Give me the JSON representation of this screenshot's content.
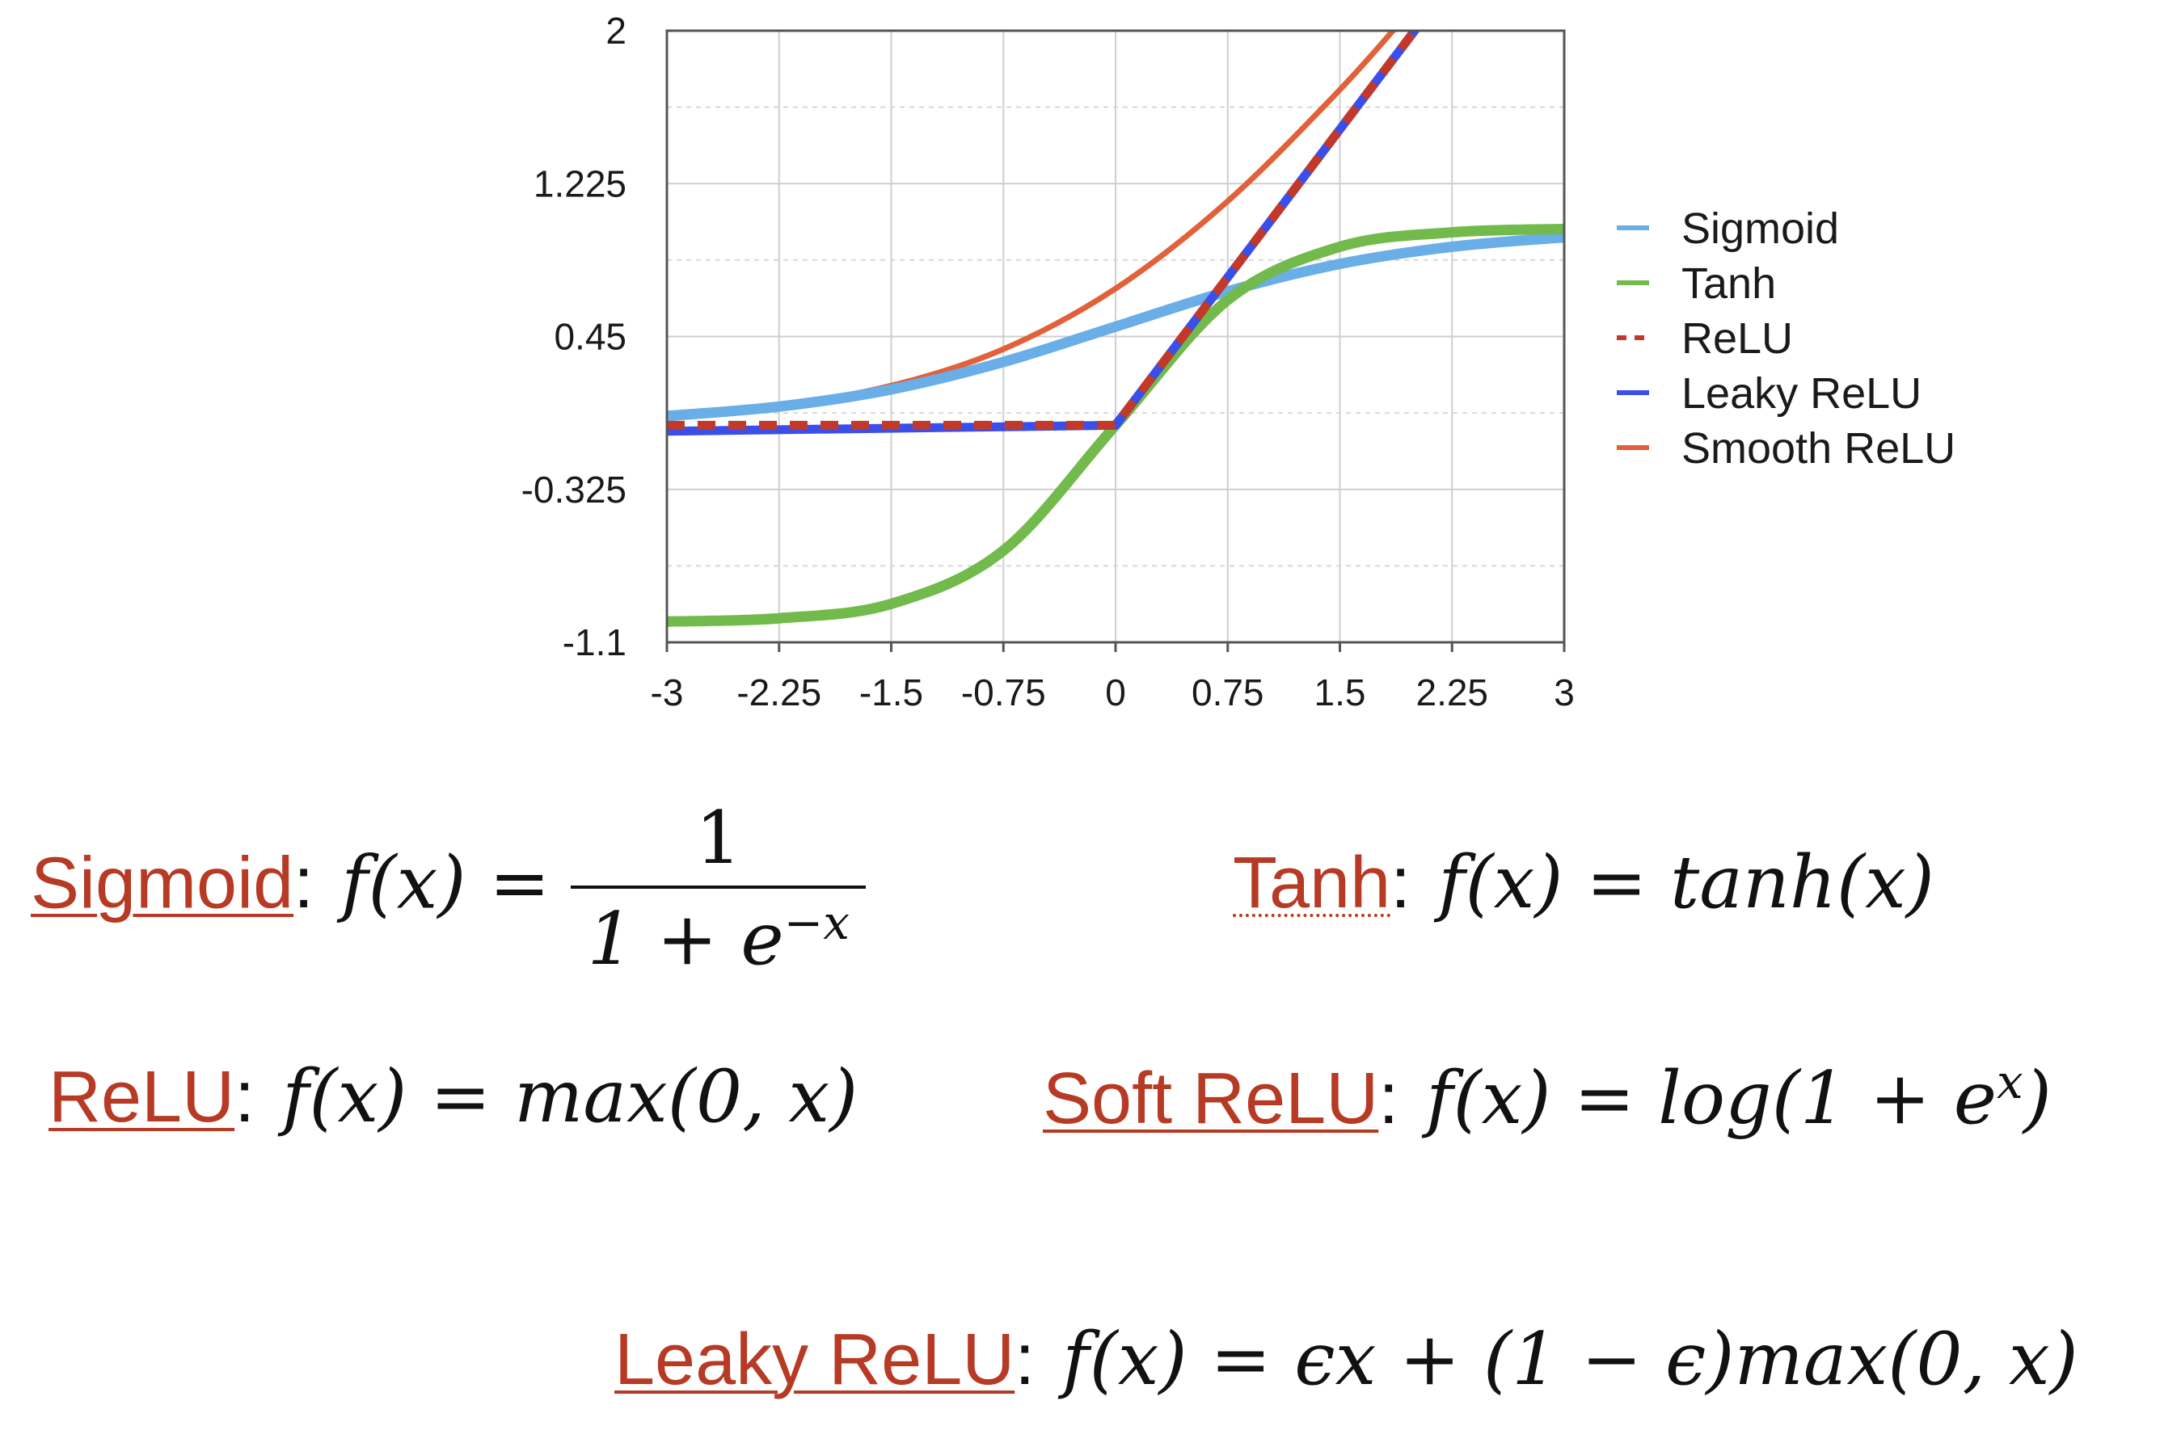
{
  "chart_data": {
    "type": "line",
    "xlim": [
      -3,
      3
    ],
    "ylim": [
      -1.1,
      2
    ],
    "x_ticks": [
      "-3",
      "-2.25",
      "-1.5",
      "-0.75",
      "0",
      "0.75",
      "1.5",
      "2.25",
      "3"
    ],
    "y_ticks": [
      "-1.1",
      "-0.325",
      "0.45",
      "1.225",
      "2"
    ],
    "grid": true,
    "legend_position": "right",
    "series": [
      {
        "name": "Sigmoid",
        "color": "#6aaee8",
        "style": "solid",
        "x": [
          -3,
          -2.25,
          -1.5,
          -0.75,
          0,
          0.75,
          1.5,
          2.25,
          3
        ],
        "y": [
          0.047,
          0.095,
          0.182,
          0.321,
          0.5,
          0.679,
          0.818,
          0.905,
          0.953
        ]
      },
      {
        "name": "Tanh",
        "color": "#72ba4b",
        "style": "solid",
        "x": [
          -3,
          -2.25,
          -1.5,
          -0.75,
          0,
          0.75,
          1.5,
          2.25,
          3
        ],
        "y": [
          -0.995,
          -0.978,
          -0.905,
          -0.635,
          0,
          0.635,
          0.905,
          0.978,
          0.995
        ]
      },
      {
        "name": "ReLU",
        "color": "#c0392b",
        "style": "dashed",
        "x": [
          -3,
          0,
          2.1
        ],
        "y": [
          0,
          0,
          2.1
        ]
      },
      {
        "name": "Leaky ReLU",
        "color": "#3b4ee8",
        "style": "solid",
        "x": [
          -3,
          0,
          2.1
        ],
        "y": [
          -0.03,
          0,
          2.1
        ]
      },
      {
        "name": "Smooth ReLU",
        "color": "#e0613a",
        "style": "solid",
        "x": [
          -3,
          -2.25,
          -1.5,
          -0.75,
          0,
          0.75,
          1.5,
          2.0
        ],
        "y": [
          0.049,
          0.1,
          0.201,
          0.386,
          0.693,
          1.136,
          1.701,
          2.127
        ]
      }
    ]
  },
  "formulas": {
    "sigmoid": {
      "name": "Sigmoid",
      "colon": ":",
      "lhs": "f(x) =",
      "numerator": "1",
      "denominator": "1 + e",
      "exponent": "−x"
    },
    "tanh": {
      "name": "Tanh",
      "colon": ":",
      "expr": "f(x) = tanh(x)"
    },
    "relu": {
      "name": "ReLU",
      "colon": ":",
      "expr": "f(x) = max(0, x)"
    },
    "soft_relu": {
      "name": "Soft ReLU",
      "colon": ":",
      "expr_main": "f(x) = log(1 + e",
      "exponent": "x",
      "expr_end": ")"
    },
    "leaky_relu": {
      "name": "Leaky ReLU",
      "colon": ":",
      "expr": "f(x) = ϵx + (1 − ϵ)max(0, x)"
    }
  }
}
